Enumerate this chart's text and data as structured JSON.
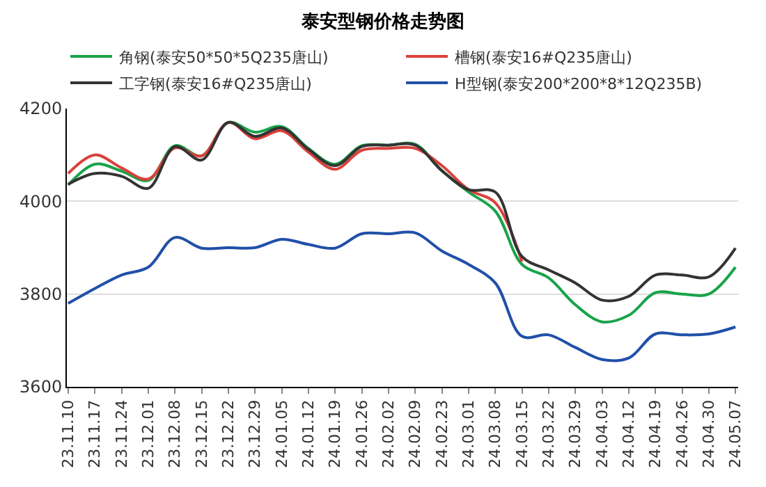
{
  "chart_data": {
    "type": "line",
    "title": "泰安型钢价格走势图",
    "categories": [
      "23.11.10",
      "23.11.17",
      "23.11.24",
      "23.12.01",
      "23.12.08",
      "23.12.15",
      "23.12.22",
      "23.12.29",
      "24.01.05",
      "24.01.12",
      "24.01.19",
      "24.01.26",
      "24.02.02",
      "24.02.09",
      "24.02.23",
      "24.03.01",
      "24.03.08",
      "24.03.15",
      "24.03.22",
      "24.03.29",
      "24.04.03",
      "24.04.12",
      "24.04.19",
      "24.04.26",
      "24.04.30",
      "24.05.07"
    ],
    "series": [
      {
        "name": "角钢(泰安50*50*5Q235唐山)",
        "color": "#1aa34a",
        "values": [
          4035,
          4080,
          4065,
          4045,
          4120,
          4098,
          4170,
          4149,
          4161,
          4114,
          4080,
          4120,
          4121,
          4123,
          4066,
          4020,
          3979,
          3864,
          3835,
          3777,
          3740,
          3754,
          3803,
          3800,
          3800,
          3858
        ]
      },
      {
        "name": "槽钢(泰安16#Q235唐山)",
        "color": "#d9413b",
        "values": [
          4060,
          4100,
          4072,
          4048,
          4115,
          4098,
          4170,
          4135,
          4152,
          4106,
          4069,
          4110,
          4114,
          4114,
          4077,
          4025,
          3997,
          3870,
          null,
          null,
          null,
          null,
          null,
          null,
          null,
          null
        ]
      },
      {
        "name": "工字钢(泰安16#Q235唐山)",
        "color": "#333333",
        "values": [
          4037,
          4060,
          4054,
          4028,
          4118,
          4089,
          4170,
          4140,
          4158,
          4112,
          4077,
          4118,
          4121,
          4121,
          4066,
          4025,
          4020,
          3881,
          3852,
          3824,
          3787,
          3795,
          3841,
          3841,
          3837,
          3899
        ]
      },
      {
        "name": "H型钢(泰安200*200*8*12Q235B)",
        "color": "#2050a8",
        "values": [
          3780,
          3812,
          3841,
          3858,
          3922,
          3899,
          3900,
          3900,
          3918,
          3907,
          3899,
          3930,
          3930,
          3932,
          3893,
          3864,
          3824,
          3709,
          3712,
          3685,
          3659,
          3662,
          3714,
          3712,
          3714,
          3729
        ]
      }
    ],
    "ylim": [
      3600,
      4200
    ],
    "yticks": [
      3600,
      3800,
      4000,
      4200
    ],
    "grid": "y",
    "legend": "top",
    "marker": "none",
    "line_style": "solid"
  }
}
